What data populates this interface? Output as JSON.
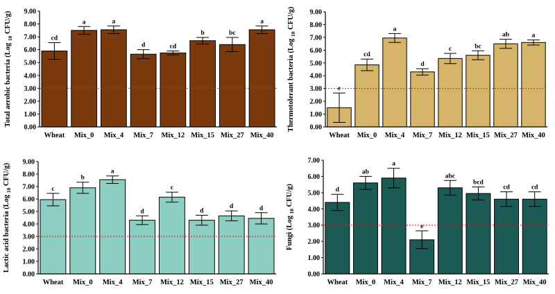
{
  "chart_data": [
    {
      "type": "bar",
      "title": "",
      "ylabel": "Total aerobic bacteria (Log 10 CFU/g)",
      "ylabel_parts": [
        "Total aerobic bacteria (Log",
        "10",
        "CFU/g)"
      ],
      "categories": [
        "Wheat",
        "Mix_0",
        "Mix_4",
        "Mix_7",
        "Mix_12",
        "Mix_15",
        "Mix_27",
        "Mix_40"
      ],
      "values": [
        5.9,
        7.5,
        7.55,
        5.65,
        5.75,
        6.7,
        6.4,
        7.55
      ],
      "errors": [
        0.65,
        0.3,
        0.3,
        0.35,
        0.15,
        0.25,
        0.55,
        0.3
      ],
      "letters": [
        "cd",
        "a",
        "a",
        "d",
        "cd",
        "b",
        "bc",
        "a"
      ],
      "yticks": [
        "0.00",
        "1.00",
        "2.00",
        "3.00",
        "4.00",
        "5.00",
        "6.00",
        "7.00",
        "8.00",
        "9.00"
      ],
      "ylim": [
        0,
        9
      ],
      "reference_line": 3.0,
      "color": "#7a3a0e",
      "grid": false
    },
    {
      "type": "bar",
      "title": "",
      "ylabel": "Thermotolerant bacteria (Log 10 CFU/g)",
      "ylabel_parts": [
        "Thermotolerant bacteria (Log",
        "10",
        "CFU/g)"
      ],
      "categories": [
        "Wheat",
        "Mix_0",
        "Mix_4",
        "Mix_7",
        "Mix_12",
        "Mix_15",
        "Mix_27",
        "Mix_40"
      ],
      "values": [
        1.5,
        4.85,
        6.95,
        4.3,
        5.35,
        5.6,
        6.5,
        6.6
      ],
      "errors": [
        1.15,
        0.45,
        0.35,
        0.25,
        0.4,
        0.35,
        0.35,
        0.2
      ],
      "letters": [
        "e",
        "cd",
        "a",
        "d",
        "c",
        "bc",
        "ab",
        "a"
      ],
      "yticks": [
        "0.00",
        "1.00",
        "2.00",
        "3.00",
        "4.00",
        "5.00",
        "6.00",
        "7.00",
        "8.00",
        "9.00"
      ],
      "ylim": [
        0,
        9
      ],
      "reference_line": 3.0,
      "color": "#d6b46a",
      "grid": false
    },
    {
      "type": "bar",
      "title": "",
      "ylabel": "Lactic acid bacteria (Log 10 CFU/g)",
      "ylabel_parts": [
        "Lactic acid bacteria (Log",
        "10",
        "CFU/g)"
      ],
      "categories": [
        "Wheat",
        "Mix_0",
        "Mix_4",
        "Mix_7",
        "Mix_12",
        "Mix_15",
        "Mix_27",
        "Mix_40"
      ],
      "values": [
        5.95,
        6.9,
        7.55,
        4.3,
        6.15,
        4.3,
        4.65,
        4.45
      ],
      "errors": [
        0.5,
        0.45,
        0.3,
        0.35,
        0.4,
        0.4,
        0.4,
        0.45
      ],
      "letters": [
        "c",
        "b",
        "a",
        "d",
        "c",
        "d",
        "d",
        "d"
      ],
      "yticks": [
        "0.00",
        "1.00",
        "2.00",
        "3.00",
        "4.00",
        "5.00",
        "6.00",
        "7.00",
        "8.00",
        "9.00"
      ],
      "ylim": [
        0,
        9
      ],
      "reference_line": 3.0,
      "color": "#8ccfc2",
      "grid": false
    },
    {
      "type": "bar",
      "title": "",
      "ylabel": "Fungi (Log 10 CFU/g)",
      "ylabel_parts": [
        "Fungi (Log",
        "10",
        "CFU/g)"
      ],
      "categories": [
        "Wheat",
        "Mix_0",
        "Mix_4",
        "Mix_7",
        "Mix_12",
        "Mix_15",
        "Mix_27",
        "Mix_40"
      ],
      "values": [
        4.4,
        5.6,
        5.9,
        2.1,
        5.3,
        4.95,
        4.6,
        4.6
      ],
      "errors": [
        0.5,
        0.4,
        0.6,
        0.55,
        0.45,
        0.4,
        0.45,
        0.45
      ],
      "letters": [
        "d",
        "ab",
        "a",
        "e",
        "abc",
        "bcd",
        "cd",
        "cd"
      ],
      "yticks": [
        "0.00",
        "1.00",
        "2.00",
        "3.00",
        "4.00",
        "5.00",
        "6.00",
        "7.00"
      ],
      "ylim": [
        0,
        7
      ],
      "reference_line": 3.0,
      "color": "#1b5a55",
      "grid": false
    }
  ]
}
